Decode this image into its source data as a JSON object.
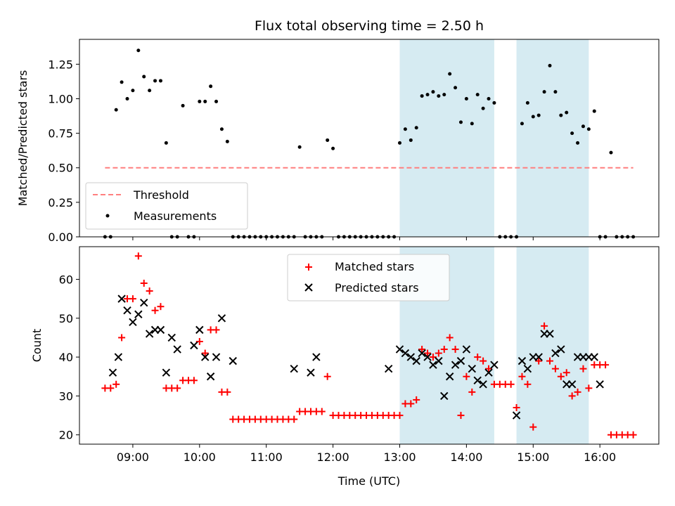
{
  "chart_data": [
    {
      "type": "scatter",
      "title": "Flux total observing time = 2.50 h",
      "ylabel": "Matched/Predicted stars",
      "xlabel": "",
      "xlim": [
        "08:12",
        "16:53"
      ],
      "ylim": [
        0,
        1.43
      ],
      "yticks": [
        "0.00",
        "0.25",
        "0.50",
        "0.75",
        "1.00",
        "1.25"
      ],
      "xticks": [
        "09:00",
        "10:00",
        "11:00",
        "12:00",
        "13:00",
        "14:00",
        "15:00",
        "16:00"
      ],
      "shaded_intervals": [
        [
          "13:00",
          "14:25"
        ],
        [
          "14:45",
          "15:50"
        ]
      ],
      "shade_color": "#add8e6",
      "legend": {
        "location": "lower-left",
        "threshold_label": "Threshold",
        "measurements_label": "Measurements"
      },
      "threshold": {
        "name": "Threshold",
        "value": 0.5,
        "x": [
          "08:35",
          "16:30"
        ],
        "color": "#ff7f7f",
        "style": "dashed"
      },
      "series": [
        {
          "name": "Measurements",
          "color": "#000000",
          "marker": "dot",
          "x": [
            "08:35",
            "08:40",
            "08:45",
            "08:50",
            "08:55",
            "09:00",
            "09:05",
            "09:10",
            "09:15",
            "09:20",
            "09:25",
            "09:30",
            "09:35",
            "09:40",
            "09:45",
            "09:50",
            "09:55",
            "10:00",
            "10:05",
            "10:10",
            "10:15",
            "10:20",
            "10:25",
            "10:30",
            "10:35",
            "10:40",
            "10:45",
            "10:50",
            "10:55",
            "11:00",
            "11:05",
            "11:10",
            "11:15",
            "11:20",
            "11:25",
            "11:30",
            "11:35",
            "11:40",
            "11:45",
            "11:50",
            "11:55",
            "12:00",
            "12:05",
            "12:10",
            "12:15",
            "12:20",
            "12:25",
            "12:30",
            "12:35",
            "12:40",
            "12:45",
            "12:50",
            "12:55",
            "13:00",
            "13:05",
            "13:10",
            "13:15",
            "13:20",
            "13:25",
            "13:30",
            "13:35",
            "13:40",
            "13:45",
            "13:50",
            "13:55",
            "14:00",
            "14:05",
            "14:10",
            "14:15",
            "14:20",
            "14:25",
            "14:30",
            "14:35",
            "14:40",
            "14:45",
            "14:50",
            "14:55",
            "15:00",
            "15:05",
            "15:10",
            "15:15",
            "15:20",
            "15:25",
            "15:30",
            "15:35",
            "15:40",
            "15:45",
            "15:50",
            "15:55",
            "16:00",
            "16:05",
            "16:10",
            "16:15",
            "16:20",
            "16:25",
            "16:30"
          ],
          "y": [
            0,
            0,
            0.92,
            1.12,
            1.0,
            1.06,
            1.35,
            1.16,
            1.06,
            1.13,
            1.13,
            0.68,
            0,
            0,
            0.95,
            0,
            0,
            0.98,
            0.98,
            1.09,
            0.98,
            0.78,
            0.69,
            0,
            0,
            0,
            0,
            0,
            0,
            0,
            0,
            0,
            0,
            0,
            0,
            0.65,
            0,
            0,
            0,
            0,
            0.7,
            0.64,
            0,
            0,
            0,
            0,
            0,
            0,
            0,
            0,
            0,
            0,
            0,
            0.68,
            0.78,
            0.7,
            0.79,
            1.02,
            1.03,
            1.05,
            1.02,
            1.03,
            1.18,
            1.08,
            0.83,
            1.0,
            0.82,
            1.03,
            0.93,
            1.0,
            0.97,
            0,
            0,
            0,
            0,
            0.82,
            0.97,
            0.87,
            0.88,
            1.05,
            1.24,
            1.05,
            0.88,
            0.9,
            0.75,
            0.68,
            0.8,
            0.78,
            0.91,
            0,
            0,
            0.61,
            0,
            0,
            0,
            0
          ]
        }
      ]
    },
    {
      "type": "scatter",
      "title": "",
      "ylabel": "Count",
      "xlabel": "Time (UTC)",
      "xlim": [
        "08:12",
        "16:53"
      ],
      "ylim": [
        17.6,
        68.4
      ],
      "yticks": [
        "20",
        "30",
        "40",
        "50",
        "60"
      ],
      "xticks": [
        "09:00",
        "10:00",
        "11:00",
        "12:00",
        "13:00",
        "14:00",
        "15:00",
        "16:00"
      ],
      "shaded_intervals": [
        [
          "13:00",
          "14:25"
        ],
        [
          "14:45",
          "15:50"
        ]
      ],
      "legend": {
        "location": "upper-center"
      },
      "series": [
        {
          "name": "Matched stars",
          "color": "#ff0000",
          "marker": "plus",
          "x": [
            "08:35",
            "08:40",
            "08:45",
            "08:50",
            "08:55",
            "09:00",
            "09:05",
            "09:10",
            "09:15",
            "09:20",
            "09:25",
            "09:30",
            "09:35",
            "09:40",
            "09:45",
            "09:50",
            "09:55",
            "10:00",
            "10:05",
            "10:10",
            "10:15",
            "10:20",
            "10:25",
            "10:30",
            "10:35",
            "10:40",
            "10:45",
            "10:50",
            "10:55",
            "11:00",
            "11:05",
            "11:10",
            "11:15",
            "11:20",
            "11:25",
            "11:30",
            "11:35",
            "11:40",
            "11:45",
            "11:50",
            "11:55",
            "12:00",
            "12:05",
            "12:10",
            "12:15",
            "12:20",
            "12:25",
            "12:30",
            "12:35",
            "12:40",
            "12:45",
            "12:50",
            "12:55",
            "13:00",
            "13:05",
            "13:10",
            "13:15",
            "13:20",
            "13:25",
            "13:30",
            "13:35",
            "13:40",
            "13:45",
            "13:50",
            "13:55",
            "14:00",
            "14:05",
            "14:10",
            "14:15",
            "14:20",
            "14:25",
            "14:30",
            "14:35",
            "14:40",
            "14:45",
            "14:50",
            "14:55",
            "15:00",
            "15:05",
            "15:10",
            "15:15",
            "15:20",
            "15:25",
            "15:30",
            "15:35",
            "15:40",
            "15:45",
            "15:50",
            "15:55",
            "16:00",
            "16:05",
            "16:10",
            "16:15",
            "16:20",
            "16:25",
            "16:30"
          ],
          "y": [
            32,
            32,
            33,
            45,
            55,
            55,
            66,
            59,
            57,
            52,
            53,
            32,
            32,
            32,
            34,
            34,
            34,
            44,
            41,
            47,
            47,
            31,
            31,
            24,
            24,
            24,
            24,
            24,
            24,
            24,
            24,
            24,
            24,
            24,
            24,
            26,
            26,
            26,
            26,
            26,
            35,
            25,
            25,
            25,
            25,
            25,
            25,
            25,
            25,
            25,
            25,
            25,
            25,
            25,
            28,
            28,
            29,
            42,
            41,
            40,
            41,
            42,
            45,
            42,
            25,
            35,
            31,
            40,
            39,
            37,
            33,
            33,
            33,
            33,
            27,
            35,
            33,
            22,
            39,
            48,
            39,
            37,
            35,
            36,
            30,
            31,
            37,
            32,
            38,
            38,
            38,
            20,
            20,
            20,
            20,
            20
          ]
        },
        {
          "name": "Predicted stars",
          "color": "#000000",
          "marker": "x",
          "x": [
            "08:42",
            "08:47",
            "08:50",
            "08:55",
            "09:00",
            "09:05",
            "09:10",
            "09:15",
            "09:20",
            "09:25",
            "09:30",
            "09:35",
            "09:40",
            "09:55",
            "10:00",
            "10:05",
            "10:10",
            "10:15",
            "10:20",
            "10:30",
            "11:25",
            "11:40",
            "11:45",
            "12:50",
            "13:00",
            "13:05",
            "13:10",
            "13:15",
            "13:20",
            "13:25",
            "13:30",
            "13:35",
            "13:40",
            "13:45",
            "13:50",
            "13:55",
            "14:00",
            "14:05",
            "14:10",
            "14:15",
            "14:20",
            "14:25",
            "14:45",
            "14:50",
            "14:55",
            "15:00",
            "15:05",
            "15:10",
            "15:15",
            "15:20",
            "15:25",
            "15:30",
            "15:35",
            "15:40",
            "15:45",
            "15:50",
            "15:55",
            "16:00"
          ],
          "y": [
            36,
            40,
            55,
            52,
            49,
            51,
            54,
            46,
            47,
            47,
            36,
            45,
            42,
            43,
            47,
            40,
            35,
            40,
            50,
            39,
            37,
            36,
            40,
            37,
            42,
            41,
            40,
            39,
            41,
            40,
            38,
            39,
            30,
            35,
            38,
            39,
            42,
            37,
            34,
            33,
            36,
            38,
            25,
            39,
            37,
            40,
            40,
            46,
            46,
            41,
            42,
            33,
            33,
            40,
            40,
            40,
            40,
            33
          ]
        }
      ]
    }
  ]
}
